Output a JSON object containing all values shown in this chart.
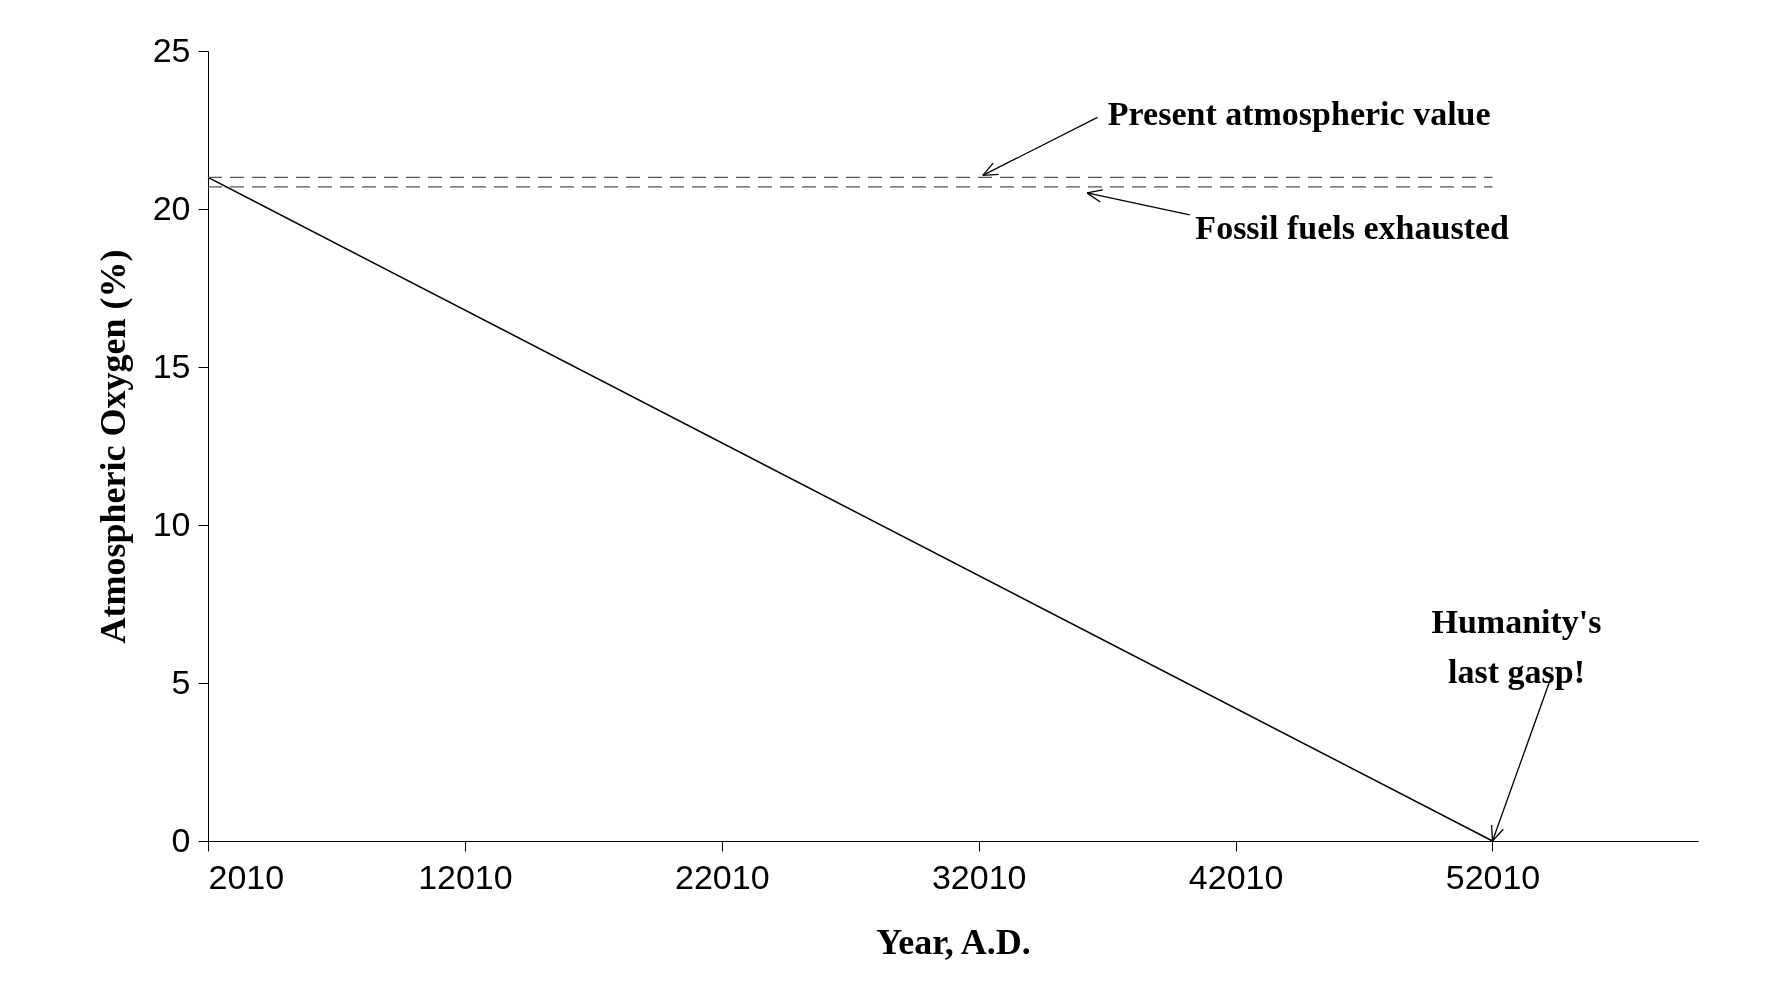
{
  "chart_data": {
    "type": "line",
    "xlabel": "Year,  A.D.",
    "ylabel": "Atmospheric Oxygen (%)",
    "x": [
      2010,
      52010
    ],
    "series": [
      {
        "color": "#000000",
        "values": [
          21,
          0
        ]
      }
    ],
    "xlim": [
      2010,
      60010
    ],
    "xticks": [
      2010,
      12010,
      22010,
      32010,
      42010,
      52010
    ],
    "ylim": [
      0,
      25
    ],
    "yticks": [
      0,
      5,
      10,
      15,
      20,
      25
    ],
    "ref_lines": [
      {
        "axis": "y",
        "value": 21,
        "label": "Present atmospheric value",
        "color": "#555555",
        "line_style": "dashed"
      },
      {
        "axis": "y",
        "value": 20.7,
        "label": "Fossil fuels exhausted",
        "color": "#555555",
        "line_style": "dashed"
      }
    ],
    "annotations": [
      {
        "text": "Humanity's\nlast gasp!",
        "x": 52010,
        "y": 0
      }
    ],
    "grid": false,
    "marker": "none",
    "line_style": "solid"
  }
}
